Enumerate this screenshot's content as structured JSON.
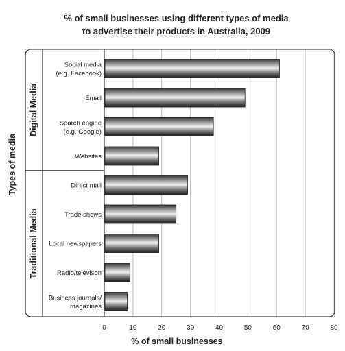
{
  "chart_data": {
    "type": "bar",
    "orientation": "horizontal",
    "title": "% of small businesses using different types of media to advertise their products in Australia, 2009",
    "title_lines": [
      "% of small businesses using different types of media",
      "to advertise their products in Australia, 2009"
    ],
    "xlabel": "% of small businesses",
    "ylabel": "Types of media",
    "xlim": [
      0,
      80
    ],
    "xticks": [
      0,
      10,
      20,
      30,
      40,
      50,
      60,
      70,
      80
    ],
    "grid": "vertical",
    "groups": [
      {
        "name": "Digital Media",
        "categories": [
          {
            "label_lines": [
              "Social media",
              "(e.g. Facebook)"
            ],
            "value": 61
          },
          {
            "label_lines": [
              "Email"
            ],
            "value": 49
          },
          {
            "label_lines": [
              "Search engine",
              "(e.g. Google)"
            ],
            "value": 38
          },
          {
            "label_lines": [
              "Websites"
            ],
            "value": 19
          }
        ]
      },
      {
        "name": "Traditional Media",
        "categories": [
          {
            "label_lines": [
              "Direct mail"
            ],
            "value": 29
          },
          {
            "label_lines": [
              "Trade shows"
            ],
            "value": 25
          },
          {
            "label_lines": [
              "Local newspapers"
            ],
            "value": 19
          },
          {
            "label_lines": [
              "Radio/televison"
            ],
            "value": 9
          },
          {
            "label_lines": [
              "Business journals/",
              "magazines"
            ],
            "value": 8
          }
        ]
      }
    ]
  }
}
